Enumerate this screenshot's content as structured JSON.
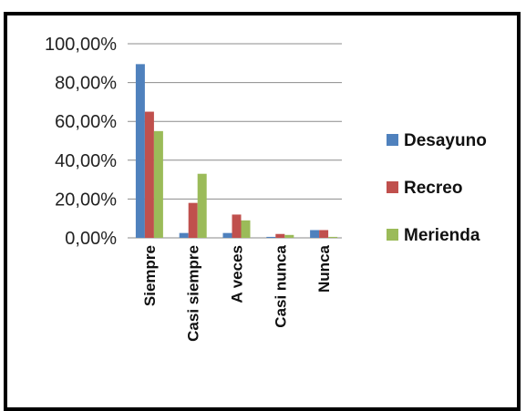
{
  "chart_data": {
    "type": "bar",
    "title": "",
    "xlabel": "",
    "ylabel": "",
    "categories": [
      "Siempre",
      "Casi siempre",
      "A veces",
      "Casi nunca",
      "Nunca"
    ],
    "series": [
      {
        "name": "Desayuno",
        "color": "#4f81bd",
        "values": [
          89.5,
          2.5,
          2.5,
          0.5,
          4.0
        ]
      },
      {
        "name": "Recreo",
        "color": "#c0504d",
        "values": [
          65.0,
          18.0,
          12.0,
          2.0,
          4.0
        ]
      },
      {
        "name": "Merienda",
        "color": "#9bbb59",
        "values": [
          55.0,
          33.0,
          9.0,
          1.5,
          0.5
        ]
      }
    ],
    "yticks": [
      "0,00%",
      "20,00%",
      "40,00%",
      "60,00%",
      "80,00%",
      "100,00%"
    ],
    "ylim": [
      0,
      100
    ],
    "grid": true,
    "legend": "right"
  }
}
